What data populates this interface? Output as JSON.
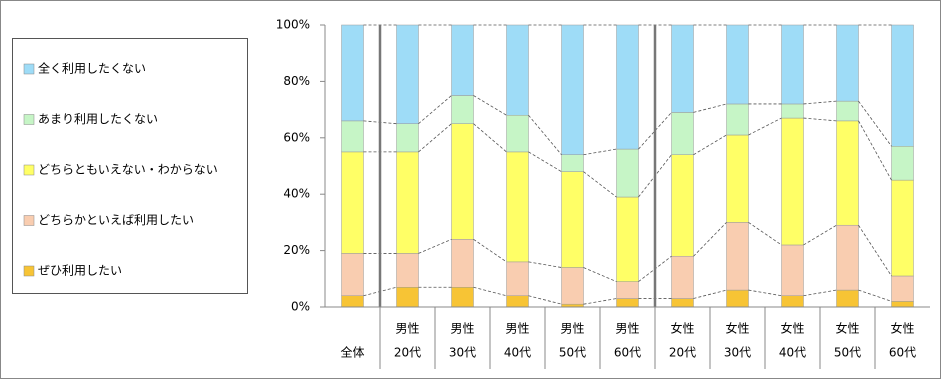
{
  "chart_data": {
    "type": "stacked_bar",
    "categories": [
      [
        "全体"
      ],
      [
        "男性",
        "20代"
      ],
      [
        "男性",
        "30代"
      ],
      [
        "男性",
        "40代"
      ],
      [
        "男性",
        "50代"
      ],
      [
        "男性",
        "60代"
      ],
      [
        "女性",
        "20代"
      ],
      [
        "女性",
        "30代"
      ],
      [
        "女性",
        "40代"
      ],
      [
        "女性",
        "50代"
      ],
      [
        "女性",
        "60代"
      ]
    ],
    "series": [
      {
        "name": "ぜひ利用したい",
        "color": "#f7c435",
        "values": [
          4,
          7,
          7,
          4,
          1,
          3,
          3,
          6,
          4,
          6,
          2
        ]
      },
      {
        "name": "どちらかといえば利用したい",
        "color": "#f9cdb0",
        "values": [
          15,
          12,
          17,
          12,
          13,
          6,
          15,
          24,
          18,
          23,
          9
        ]
      },
      {
        "name": "どちらともいえない・わからない",
        "color": "#ffff66",
        "values": [
          36,
          36,
          41,
          39,
          34,
          30,
          36,
          31,
          45,
          37,
          34
        ]
      },
      {
        "name": "あまり利用したくない",
        "color": "#c6f5c6",
        "values": [
          11,
          10,
          10,
          13,
          6,
          17,
          15,
          11,
          5,
          7,
          12
        ]
      },
      {
        "name": "全く利用したくない",
        "color": "#9edcf7",
        "values": [
          34,
          35,
          25,
          32,
          46,
          44,
          31,
          28,
          28,
          27,
          43
        ]
      }
    ],
    "ylim": [
      0,
      100
    ],
    "yticks": [
      {
        "value": 0,
        "label": "0%"
      },
      {
        "value": 20,
        "label": "20%"
      },
      {
        "value": 40,
        "label": "40%"
      },
      {
        "value": 60,
        "label": "60%"
      },
      {
        "value": 80,
        "label": "80%"
      },
      {
        "value": 100,
        "label": "100%"
      }
    ],
    "legend": "left"
  }
}
